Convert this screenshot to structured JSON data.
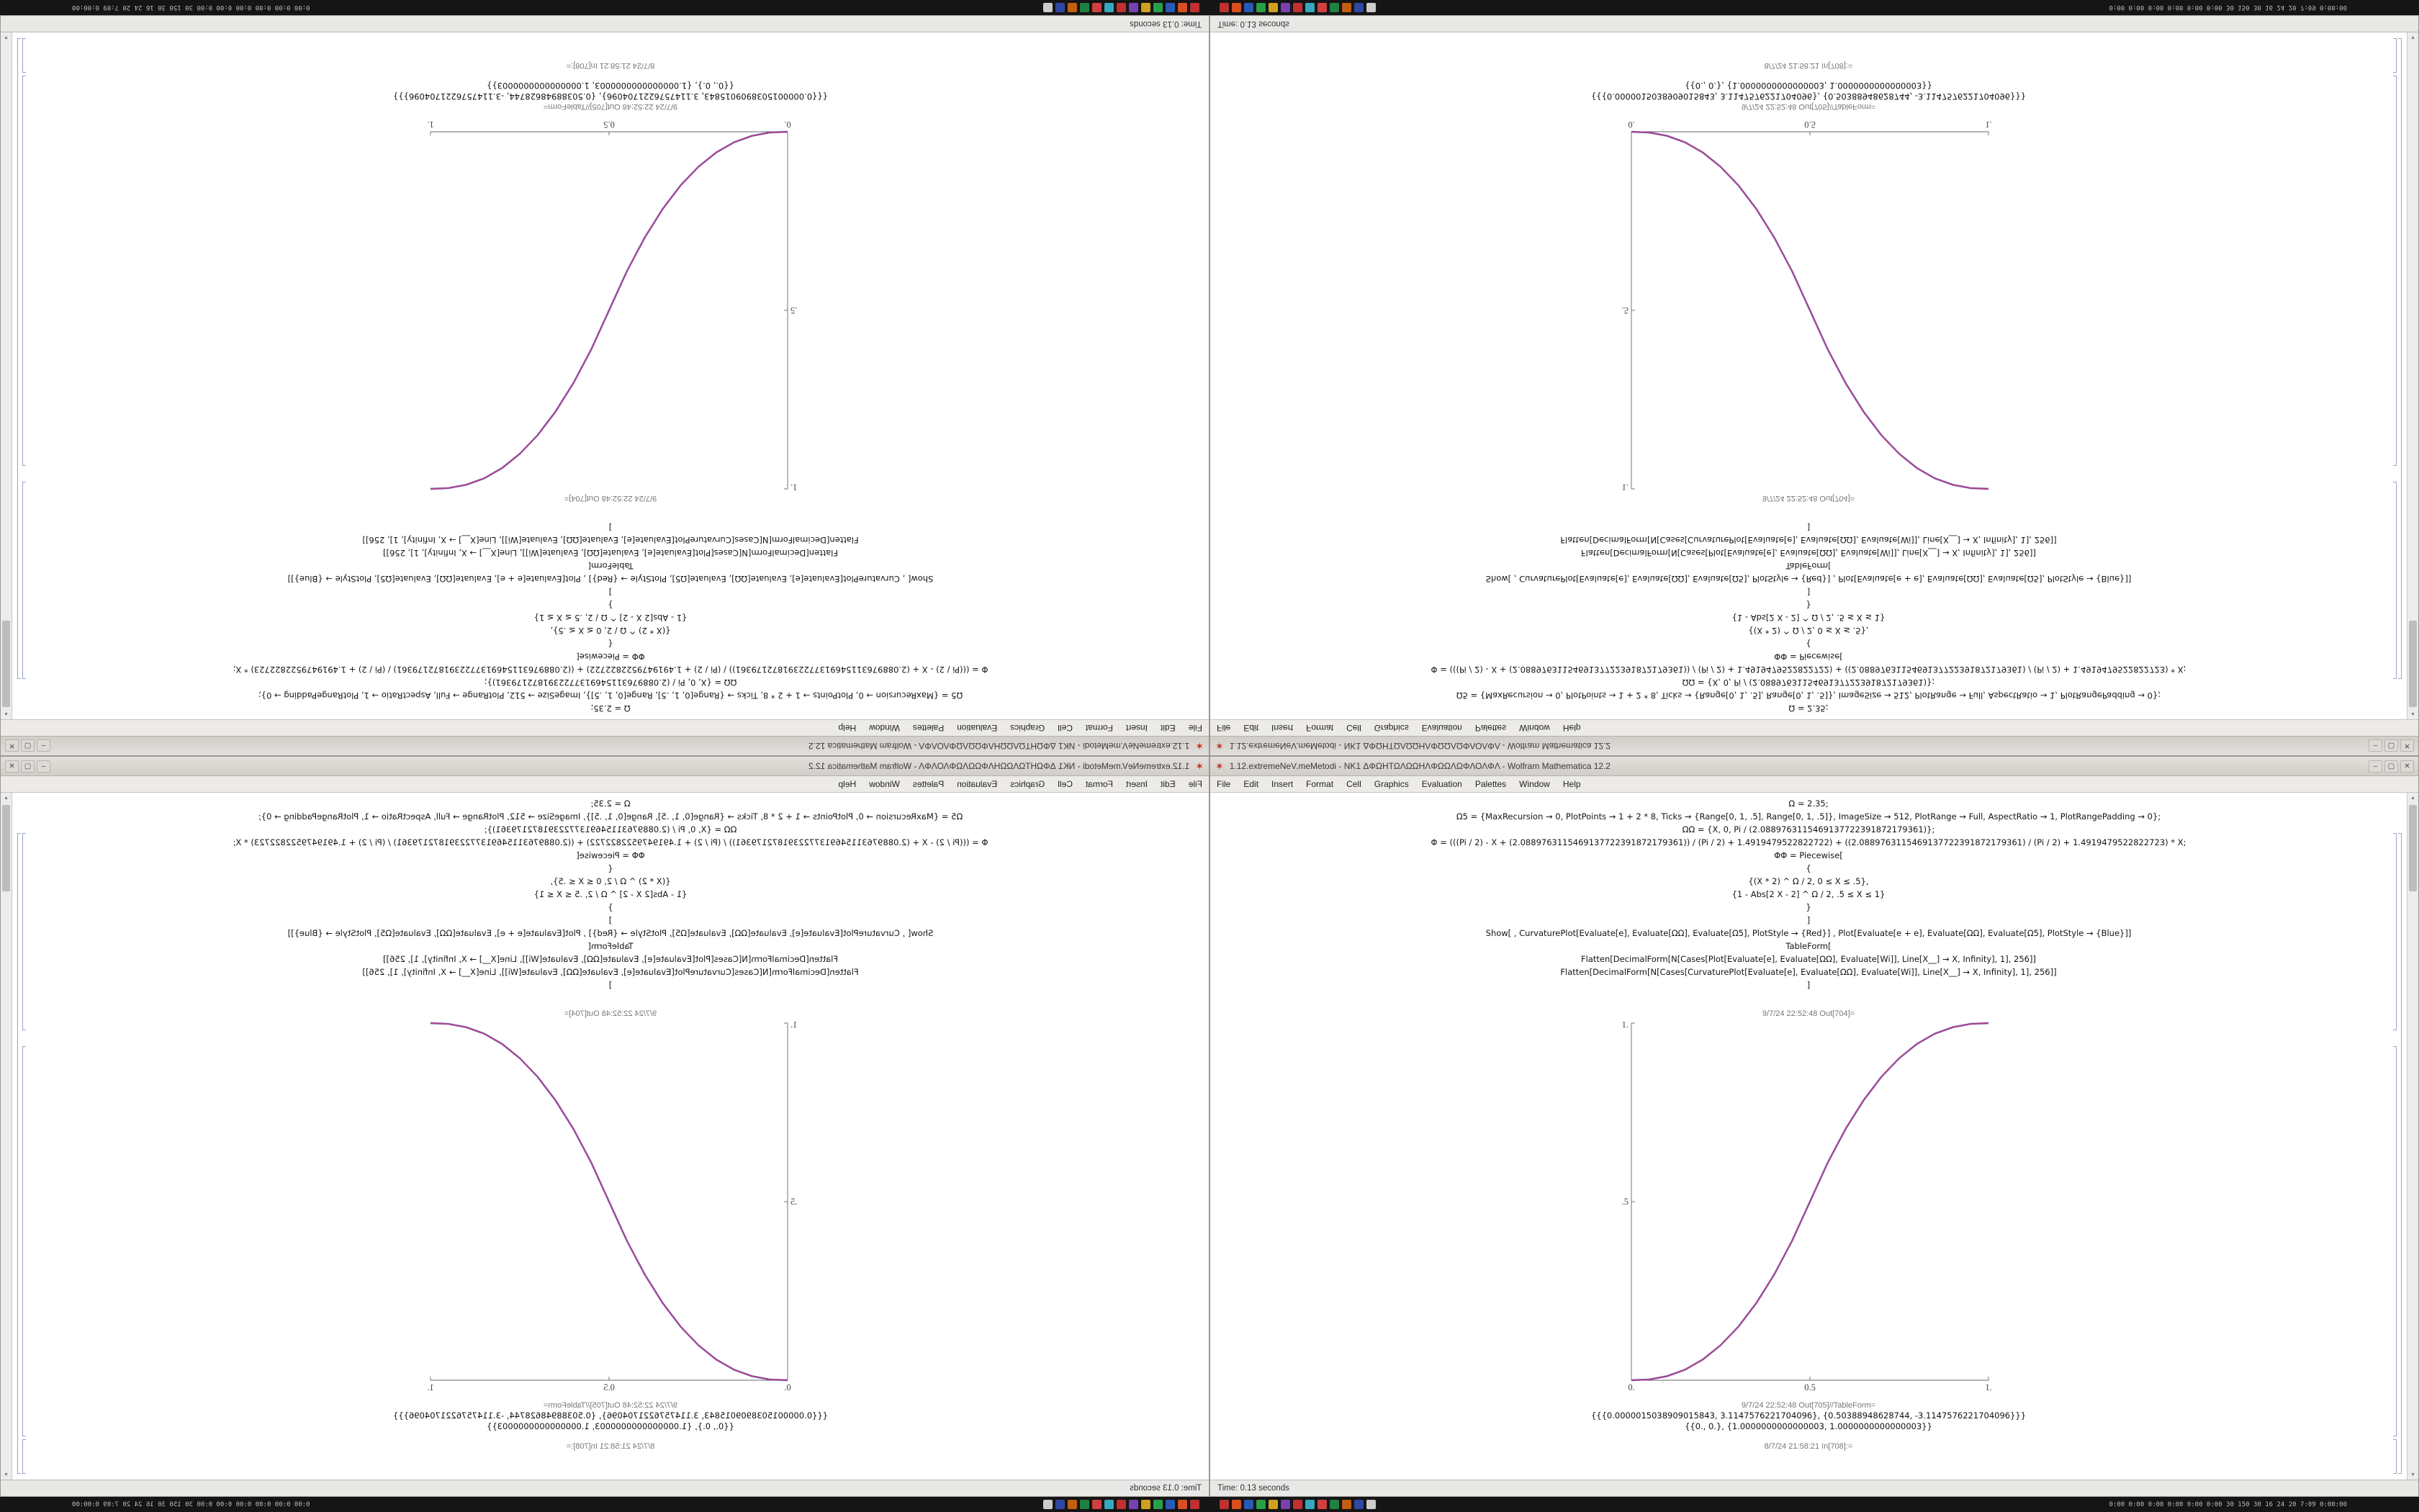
{
  "desktop": {
    "description": "2x2 tiling of the same Wolfram Mathematica notebook screenshot in four orientations"
  },
  "quadrants": [
    {
      "id": "top-left",
      "orientation": "rotated-180"
    },
    {
      "id": "top-right",
      "orientation": "flipped-vertical"
    },
    {
      "id": "bottom-left",
      "orientation": "flipped-horizontal"
    },
    {
      "id": "bottom-right",
      "orientation": "normal"
    }
  ],
  "window": {
    "titlebar": {
      "app_icon": "✶",
      "title": "1.12.extremeNeV.meMetodi - NK1 ΔΦΩΗΤΩΛΩΩΗΛΦΩΩΛΩΦΛΟΛΦΛ - Wolfram Mathematica 12.2",
      "minimize": "–",
      "maximize": "▢",
      "close": "✕"
    },
    "menubar": {
      "items": [
        "File",
        "Edit",
        "Insert",
        "Format",
        "Cell",
        "Graphics",
        "Evaluation",
        "Palettes",
        "Window",
        "Help"
      ]
    },
    "cells": {
      "code_lines": [
        "Ω = 2.35;",
        "Ω5 = {MaxRecursion → 0, PlotPoints → 1 + 2 * 8, Ticks → {Range[0, 1, .5], Range[0, 1, .5]}, ImageSize → 512, PlotRange → Full, AspectRatio → 1, PlotRangePadding → 0};",
        "ΩΩ = {X, 0, Pi / (2.0889763115469137722391872179361)};",
        "Φ = (((Pi / 2) - X + (2.0889763115469137722391872179361)) / (Pi / 2) + 1.4919479522822722) + ((2.0889763115469137722391872179361) / (Pi / 2) + 1.4919479522822723) * X;",
        "ΦΦ = Piecewise[",
        "{",
        "{(X * 2) ^ Ω / 2, 0 ≤ X ≤ .5},",
        "{1 - Abs[2 X - 2] ^ Ω / 2, .5 ≤ X ≤ 1}",
        "}",
        "]",
        "Show[ , CurvaturePlot[Evaluate[e], Evaluate[ΩΩ], Evaluate[Ω5], PlotStyle → {Red}] , Plot[Evaluate[e + e], Evaluate[ΩΩ], Evaluate[Ω5], PlotStyle → {Blue}]]",
        "TableForm[",
        "Flatten[DecimalForm[N[Cases[Plot[Evaluate[e], Evaluate[ΩΩ], Evaluate[Wi]], Line[X__] → X, Infinity], 1], 256]]",
        "Flatten[DecimalForm[N[Cases[CurvaturePlot[Evaluate[e], Evaluate[ΩΩ], Evaluate[Wi]], Line[X__] → X, Infinity], 1], 256]]",
        "]"
      ],
      "out1_label": "9/7/24 22:52:48 Out[704]=",
      "out2_label": "9/7/24 22:52:48 Out[705]//TableForm=",
      "table_lines": [
        "{{{0.0000015038909015843, 3.1147576221704096}, {0.50388948628744, -3.1147576221704096}}}",
        "{{0., 0.}, {1.0000000000000003, 1.0000000000000003}}"
      ],
      "in_label": "8/7/24 21:58:21 In[708]:="
    },
    "statusbar": {
      "left": "Time: 0.13 seconds"
    },
    "scrollbar": {
      "up": "▲",
      "down": "▼"
    }
  },
  "chart_data": {
    "type": "line",
    "title": "",
    "xlabel": "",
    "ylabel": "",
    "xlim": [
      0,
      1
    ],
    "ylim": [
      0,
      1
    ],
    "grid": false,
    "x_ticks": [
      "0.",
      "0.5",
      "1."
    ],
    "y_ticks": [
      "0.5",
      "1."
    ],
    "points": [
      [
        0,
        0
      ],
      [
        0.05,
        0.0022
      ],
      [
        0.1,
        0.0114
      ],
      [
        0.15,
        0.0295
      ],
      [
        0.2,
        0.058
      ],
      [
        0.25,
        0.0981
      ],
      [
        0.3,
        0.1505
      ],
      [
        0.35,
        0.2163
      ],
      [
        0.4,
        0.296
      ],
      [
        0.45,
        0.3903
      ],
      [
        0.5,
        0.5
      ],
      [
        0.55,
        0.6097
      ],
      [
        0.6,
        0.704
      ],
      [
        0.65,
        0.7837
      ],
      [
        0.7,
        0.8495
      ],
      [
        0.75,
        0.9019
      ],
      [
        0.8,
        0.942
      ],
      [
        0.85,
        0.9705
      ],
      [
        0.9,
        0.9886
      ],
      [
        0.95,
        0.9978
      ],
      [
        1,
        1
      ]
    ],
    "series": [
      {
        "name": "plot-blue",
        "color": "#3c3cc8",
        "width": 2.4
      },
      {
        "name": "curvature-plot-red",
        "color": "#c84878",
        "width": 1.5
      }
    ]
  },
  "taskbar": {
    "icons": [
      {
        "name": "taskbar-app-1",
        "color": "#c03030"
      },
      {
        "name": "taskbar-app-2",
        "color": "#d85020"
      },
      {
        "name": "taskbar-app-3",
        "color": "#2858b8"
      },
      {
        "name": "taskbar-app-4",
        "color": "#28a048"
      },
      {
        "name": "taskbar-app-5",
        "color": "#d0a020"
      },
      {
        "name": "taskbar-app-6",
        "color": "#7840b0"
      },
      {
        "name": "taskbar-app-7",
        "color": "#c03030"
      },
      {
        "name": "taskbar-app-8",
        "color": "#38a8c0"
      },
      {
        "name": "taskbar-app-9",
        "color": "#d04040"
      },
      {
        "name": "taskbar-app-10",
        "color": "#208040"
      },
      {
        "name": "taskbar-app-11",
        "color": "#c06010"
      },
      {
        "name": "taskbar-app-12",
        "color": "#3048a0"
      },
      {
        "name": "taskbar-app-13",
        "color": "#cccccc"
      }
    ],
    "right_text": "0:00 0:00 0:00 0:00 0:00 0:00 30 150 30 16 24 20 7:09 0:00:00"
  }
}
